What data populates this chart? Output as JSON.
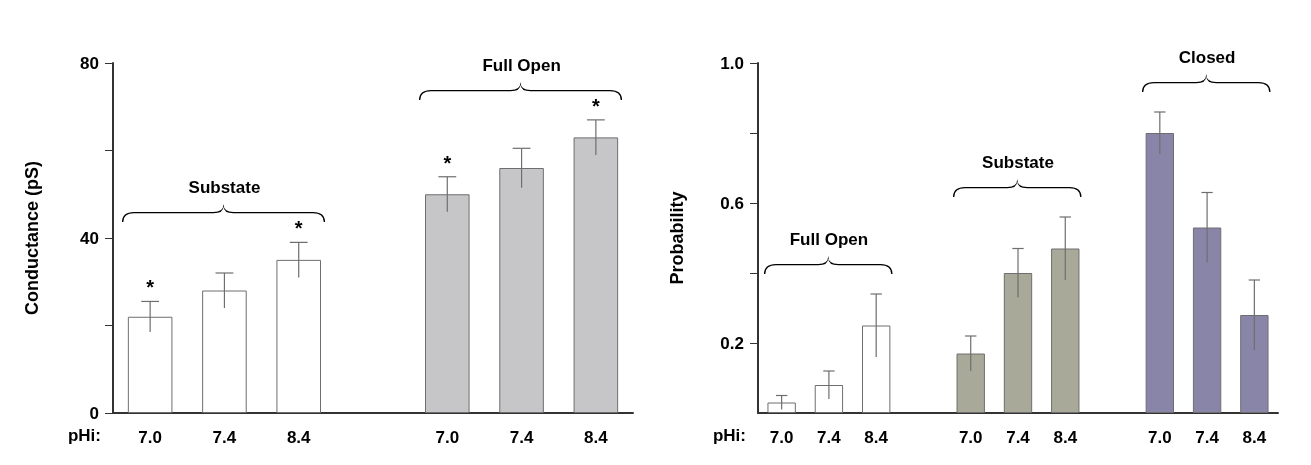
{
  "chart_data": [
    {
      "type": "bar",
      "ylabel": "Conductance (pS)",
      "xlabel": "pHi:",
      "categories": [
        "7.0",
        "7.4",
        "8.4",
        null,
        "7.0",
        "7.4",
        "8.4"
      ],
      "values": [
        22,
        28,
        35,
        null,
        50,
        56,
        63
      ],
      "errors": [
        3.5,
        4,
        4,
        null,
        4,
        4.5,
        4
      ],
      "value_labels": [
        "*",
        null,
        "*",
        null,
        "*",
        null,
        "*"
      ],
      "colors": [
        "#ffffff",
        "#ffffff",
        "#ffffff",
        null,
        "#c6c6c8",
        "#c6c6c8",
        "#c6c6c8"
      ],
      "ylim": [
        0,
        80
      ],
      "yticks": [
        0,
        {
          "value": 20,
          "label": null
        },
        40,
        {
          "value": 60,
          "label": null
        },
        80
      ],
      "annotations": [
        "Substate",
        "Full Open"
      ]
    },
    {
      "type": "bar",
      "ylabel": "Probability",
      "xlabel": "pHi:",
      "categories": [
        "7.0",
        "7.4",
        "8.4",
        null,
        "7.0",
        "7.4",
        "8.4",
        null,
        "7.0",
        "7.4",
        "8.4"
      ],
      "values": [
        0.03,
        0.08,
        0.25,
        null,
        0.17,
        0.4,
        0.47,
        null,
        0.8,
        0.53,
        0.28
      ],
      "errors": [
        0.02,
        0.04,
        0.09,
        null,
        0.05,
        0.07,
        0.09,
        null,
        0.06,
        0.1,
        0.1
      ],
      "colors": [
        "#ffffff",
        "#ffffff",
        "#ffffff",
        null,
        "#a9a999",
        "#a9a999",
        "#a9a999",
        null,
        "#8985a8",
        "#8985a8",
        "#8985a8"
      ],
      "ylim": [
        0,
        1
      ],
      "yticks": [
        {
          "value": 0.2,
          "label": "0.2"
        },
        {
          "value": 0.4,
          "label": null
        },
        0.6,
        {
          "value": 0.8,
          "label": null
        },
        {
          "value": 1,
          "label": "1.0"
        }
      ],
      "annotations": [
        "Full Open",
        "Substate",
        "Closed"
      ]
    }
  ]
}
